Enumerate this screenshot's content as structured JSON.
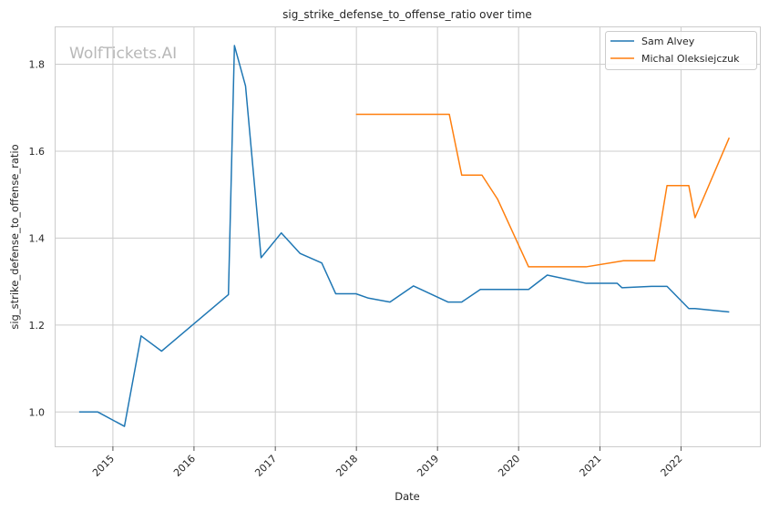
{
  "watermark": "WolfTickets.AI",
  "chart_data": {
    "type": "line",
    "title": "sig_strike_defense_to_offense_ratio over time",
    "xlabel": "Date",
    "ylabel": "sig_strike_defense_to_offense_ratio",
    "xlim": [
      "2014-04-18",
      "2022-12-22"
    ],
    "ylim": [
      0.921,
      1.885
    ],
    "x_ticks": [
      {
        "label": "2015",
        "date": "2015-01-01"
      },
      {
        "label": "2016",
        "date": "2016-01-01"
      },
      {
        "label": "2017",
        "date": "2017-01-01"
      },
      {
        "label": "2018",
        "date": "2018-01-01"
      },
      {
        "label": "2019",
        "date": "2019-01-01"
      },
      {
        "label": "2020",
        "date": "2020-01-01"
      },
      {
        "label": "2021",
        "date": "2021-01-01"
      },
      {
        "label": "2022",
        "date": "2022-01-01"
      }
    ],
    "y_ticks": [
      {
        "label": "1.0",
        "value": 1.0
      },
      {
        "label": "1.2",
        "value": 1.2
      },
      {
        "label": "1.4",
        "value": 1.4
      },
      {
        "label": "1.6",
        "value": 1.6
      },
      {
        "label": "1.8",
        "value": 1.8
      }
    ],
    "grid": true,
    "legend_position": "top-right",
    "series": [
      {
        "name": "Sam Alvey",
        "color": "#1f77b4",
        "points": [
          [
            "2014-08-02",
            1.0
          ],
          [
            "2014-10-25",
            1.0
          ],
          [
            "2015-02-22",
            0.967
          ],
          [
            "2015-05-08",
            1.175
          ],
          [
            "2015-08-08",
            1.14
          ],
          [
            "2016-06-04",
            1.27
          ],
          [
            "2016-07-01",
            1.843
          ],
          [
            "2016-08-20",
            1.75
          ],
          [
            "2016-10-29",
            1.355
          ],
          [
            "2017-01-28",
            1.412
          ],
          [
            "2017-04-22",
            1.365
          ],
          [
            "2017-07-29",
            1.343
          ],
          [
            "2017-09-30",
            1.272
          ],
          [
            "2017-12-30",
            1.272
          ],
          [
            "2018-02-24",
            1.262
          ],
          [
            "2018-06-01",
            1.253
          ],
          [
            "2018-09-15",
            1.29
          ],
          [
            "2019-02-17",
            1.253
          ],
          [
            "2019-04-20",
            1.253
          ],
          [
            "2019-07-13",
            1.282
          ],
          [
            "2020-02-15",
            1.282
          ],
          [
            "2020-05-09",
            1.315
          ],
          [
            "2020-10-31",
            1.296
          ],
          [
            "2021-03-20",
            1.296
          ],
          [
            "2021-04-10",
            1.286
          ],
          [
            "2021-08-21",
            1.289
          ],
          [
            "2021-10-30",
            1.289
          ],
          [
            "2022-02-05",
            1.238
          ],
          [
            "2022-03-05",
            1.238
          ],
          [
            "2022-08-06",
            1.23
          ]
        ]
      },
      {
        "name": "Michal Oleksiejczuk",
        "color": "#ff7f0e",
        "points": [
          [
            "2017-12-30",
            1.685
          ],
          [
            "2019-02-23",
            1.685
          ],
          [
            "2019-04-20",
            1.545
          ],
          [
            "2019-07-20",
            1.545
          ],
          [
            "2019-09-28",
            1.49
          ],
          [
            "2020-02-15",
            1.334
          ],
          [
            "2020-10-31",
            1.334
          ],
          [
            "2021-04-17",
            1.348
          ],
          [
            "2021-09-04",
            1.348
          ],
          [
            "2021-10-30",
            1.521
          ],
          [
            "2022-02-05",
            1.521
          ],
          [
            "2022-03-05",
            1.447
          ],
          [
            "2022-08-06",
            1.631
          ]
        ]
      }
    ]
  }
}
